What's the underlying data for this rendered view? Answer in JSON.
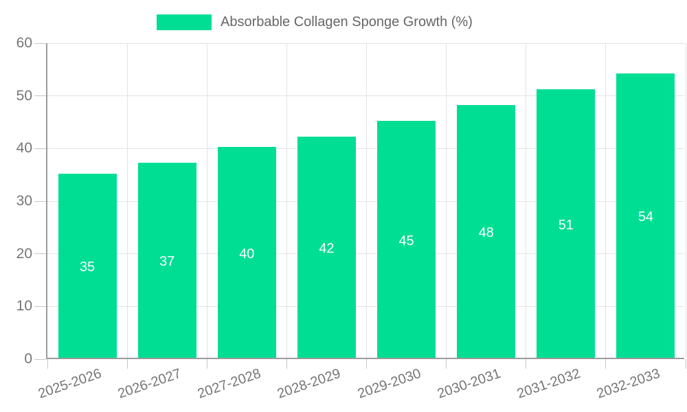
{
  "legend": {
    "label": "Absorbable Collagen Sponge Growth (%)",
    "text_color": "#666666"
  },
  "chart_data": {
    "type": "bar",
    "title": "Absorbable Collagen Sponge Growth (%)",
    "categories": [
      "2025-2026",
      "2026-2027",
      "2027-2028",
      "2028-2029",
      "2029-2030",
      "2030-2031",
      "2031-2032",
      "2032-2033"
    ],
    "values": [
      35,
      37,
      40,
      42,
      45,
      48,
      51,
      54
    ],
    "series": [
      {
        "name": "Absorbable Collagen Sponge Growth (%)",
        "values": [
          35,
          37,
          40,
          42,
          45,
          48,
          51,
          54
        ]
      }
    ],
    "xlabel": "",
    "ylabel": "",
    "ylim": [
      0,
      60
    ],
    "yticks": [
      0,
      10,
      20,
      30,
      40,
      50,
      60
    ],
    "grid": true,
    "legend_position": "top",
    "x_label_rotation_deg": -19,
    "bar_color": "#00DE93",
    "value_label_color": "#FFFFFF",
    "axis_text_color": "#757575",
    "grid_color": "#E3E3E3",
    "tick_color": "#C7C7C7",
    "axis_line_color": "#9A9A9A"
  }
}
